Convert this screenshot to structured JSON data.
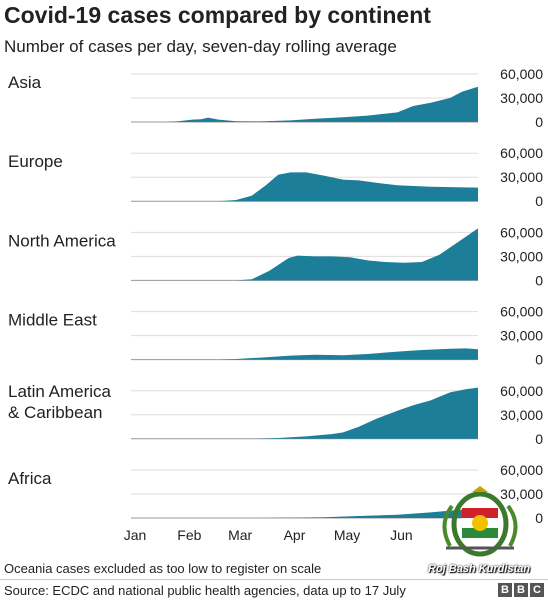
{
  "title": "Covid-19 cases compared by continent",
  "subtitle": "Number of cases per day, seven-day rolling average",
  "note": "Oceania cases excluded as too low to register on scale",
  "source": "Source: ECDC and national public health agencies, data up to 17 July",
  "branding": {
    "bbc_letters": [
      "B",
      "B",
      "C"
    ]
  },
  "watermark": "Roj Bash Kurdistan",
  "colors": {
    "fill": "#1d7e99",
    "grid": "#dddddd",
    "text": "#222222"
  },
  "chart_data": {
    "type": "area",
    "title": "Covid-19 cases compared by continent",
    "subtitle": "Number of cases per day, seven-day rolling average",
    "x_ticks": [
      "Jan",
      "Feb",
      "Mar",
      "Apr",
      "May",
      "Jun"
    ],
    "x_tick_dates": [
      "2020-01-01",
      "2020-02-01",
      "2020-03-01",
      "2020-04-01",
      "2020-05-01",
      "2020-06-01"
    ],
    "x_range": [
      "2020-01-01",
      "2020-07-17"
    ],
    "y_ticks": [
      0,
      30000,
      60000
    ],
    "ylim": [
      0,
      60000
    ],
    "grid": true,
    "series": [
      {
        "name": "Asia",
        "points": [
          [
            "2020-01-01",
            0
          ],
          [
            "2020-01-20",
            0
          ],
          [
            "2020-01-28",
            1000
          ],
          [
            "2020-02-05",
            3000
          ],
          [
            "2020-02-10",
            3500
          ],
          [
            "2020-02-14",
            5500
          ],
          [
            "2020-02-20",
            3000
          ],
          [
            "2020-03-01",
            1000
          ],
          [
            "2020-03-15",
            800
          ],
          [
            "2020-04-01",
            2000
          ],
          [
            "2020-04-15",
            4000
          ],
          [
            "2020-05-01",
            6000
          ],
          [
            "2020-05-15",
            8000
          ],
          [
            "2020-06-01",
            12000
          ],
          [
            "2020-06-10",
            20000
          ],
          [
            "2020-06-20",
            24000
          ],
          [
            "2020-07-01",
            30000
          ],
          [
            "2020-07-08",
            38000
          ],
          [
            "2020-07-17",
            44000
          ]
        ]
      },
      {
        "name": "Europe",
        "points": [
          [
            "2020-01-01",
            0
          ],
          [
            "2020-02-20",
            0
          ],
          [
            "2020-03-01",
            1500
          ],
          [
            "2020-03-10",
            7000
          ],
          [
            "2020-03-18",
            20000
          ],
          [
            "2020-03-25",
            33000
          ],
          [
            "2020-04-01",
            36000
          ],
          [
            "2020-04-10",
            36000
          ],
          [
            "2020-04-20",
            32000
          ],
          [
            "2020-05-01",
            27000
          ],
          [
            "2020-05-10",
            26000
          ],
          [
            "2020-05-20",
            23000
          ],
          [
            "2020-06-01",
            20000
          ],
          [
            "2020-06-20",
            18000
          ],
          [
            "2020-07-17",
            17000
          ]
        ]
      },
      {
        "name": "North America",
        "points": [
          [
            "2020-01-01",
            0
          ],
          [
            "2020-03-01",
            0
          ],
          [
            "2020-03-10",
            1500
          ],
          [
            "2020-03-20",
            12000
          ],
          [
            "2020-03-31",
            28000
          ],
          [
            "2020-04-05",
            31000
          ],
          [
            "2020-04-15",
            30000
          ],
          [
            "2020-04-25",
            30000
          ],
          [
            "2020-05-05",
            29000
          ],
          [
            "2020-05-15",
            25000
          ],
          [
            "2020-05-25",
            23000
          ],
          [
            "2020-06-05",
            22000
          ],
          [
            "2020-06-15",
            23000
          ],
          [
            "2020-06-25",
            32000
          ],
          [
            "2020-07-05",
            47000
          ],
          [
            "2020-07-17",
            65000
          ]
        ]
      },
      {
        "name": "Middle East",
        "points": [
          [
            "2020-01-01",
            0
          ],
          [
            "2020-02-20",
            0
          ],
          [
            "2020-03-01",
            800
          ],
          [
            "2020-03-15",
            2500
          ],
          [
            "2020-04-01",
            5000
          ],
          [
            "2020-04-15",
            6000
          ],
          [
            "2020-05-01",
            5500
          ],
          [
            "2020-05-15",
            7000
          ],
          [
            "2020-06-01",
            10000
          ],
          [
            "2020-06-15",
            12000
          ],
          [
            "2020-07-01",
            13500
          ],
          [
            "2020-07-10",
            14000
          ],
          [
            "2020-07-17",
            13000
          ]
        ]
      },
      {
        "name": "Latin America\n& Caribbean",
        "points": [
          [
            "2020-01-01",
            0
          ],
          [
            "2020-03-10",
            0
          ],
          [
            "2020-03-25",
            1000
          ],
          [
            "2020-04-10",
            3000
          ],
          [
            "2020-04-25",
            6000
          ],
          [
            "2020-05-01",
            8000
          ],
          [
            "2020-05-10",
            15000
          ],
          [
            "2020-05-20",
            25000
          ],
          [
            "2020-06-01",
            35000
          ],
          [
            "2020-06-10",
            42000
          ],
          [
            "2020-06-20",
            48000
          ],
          [
            "2020-07-01",
            58000
          ],
          [
            "2020-07-10",
            62000
          ],
          [
            "2020-07-17",
            64000
          ]
        ]
      },
      {
        "name": "Africa",
        "points": [
          [
            "2020-01-01",
            0
          ],
          [
            "2020-03-15",
            0
          ],
          [
            "2020-04-01",
            500
          ],
          [
            "2020-04-20",
            1000
          ],
          [
            "2020-05-10",
            2500
          ],
          [
            "2020-06-01",
            4000
          ],
          [
            "2020-06-20",
            7000
          ],
          [
            "2020-07-05",
            10000
          ],
          [
            "2020-07-17",
            12000
          ]
        ]
      }
    ]
  }
}
